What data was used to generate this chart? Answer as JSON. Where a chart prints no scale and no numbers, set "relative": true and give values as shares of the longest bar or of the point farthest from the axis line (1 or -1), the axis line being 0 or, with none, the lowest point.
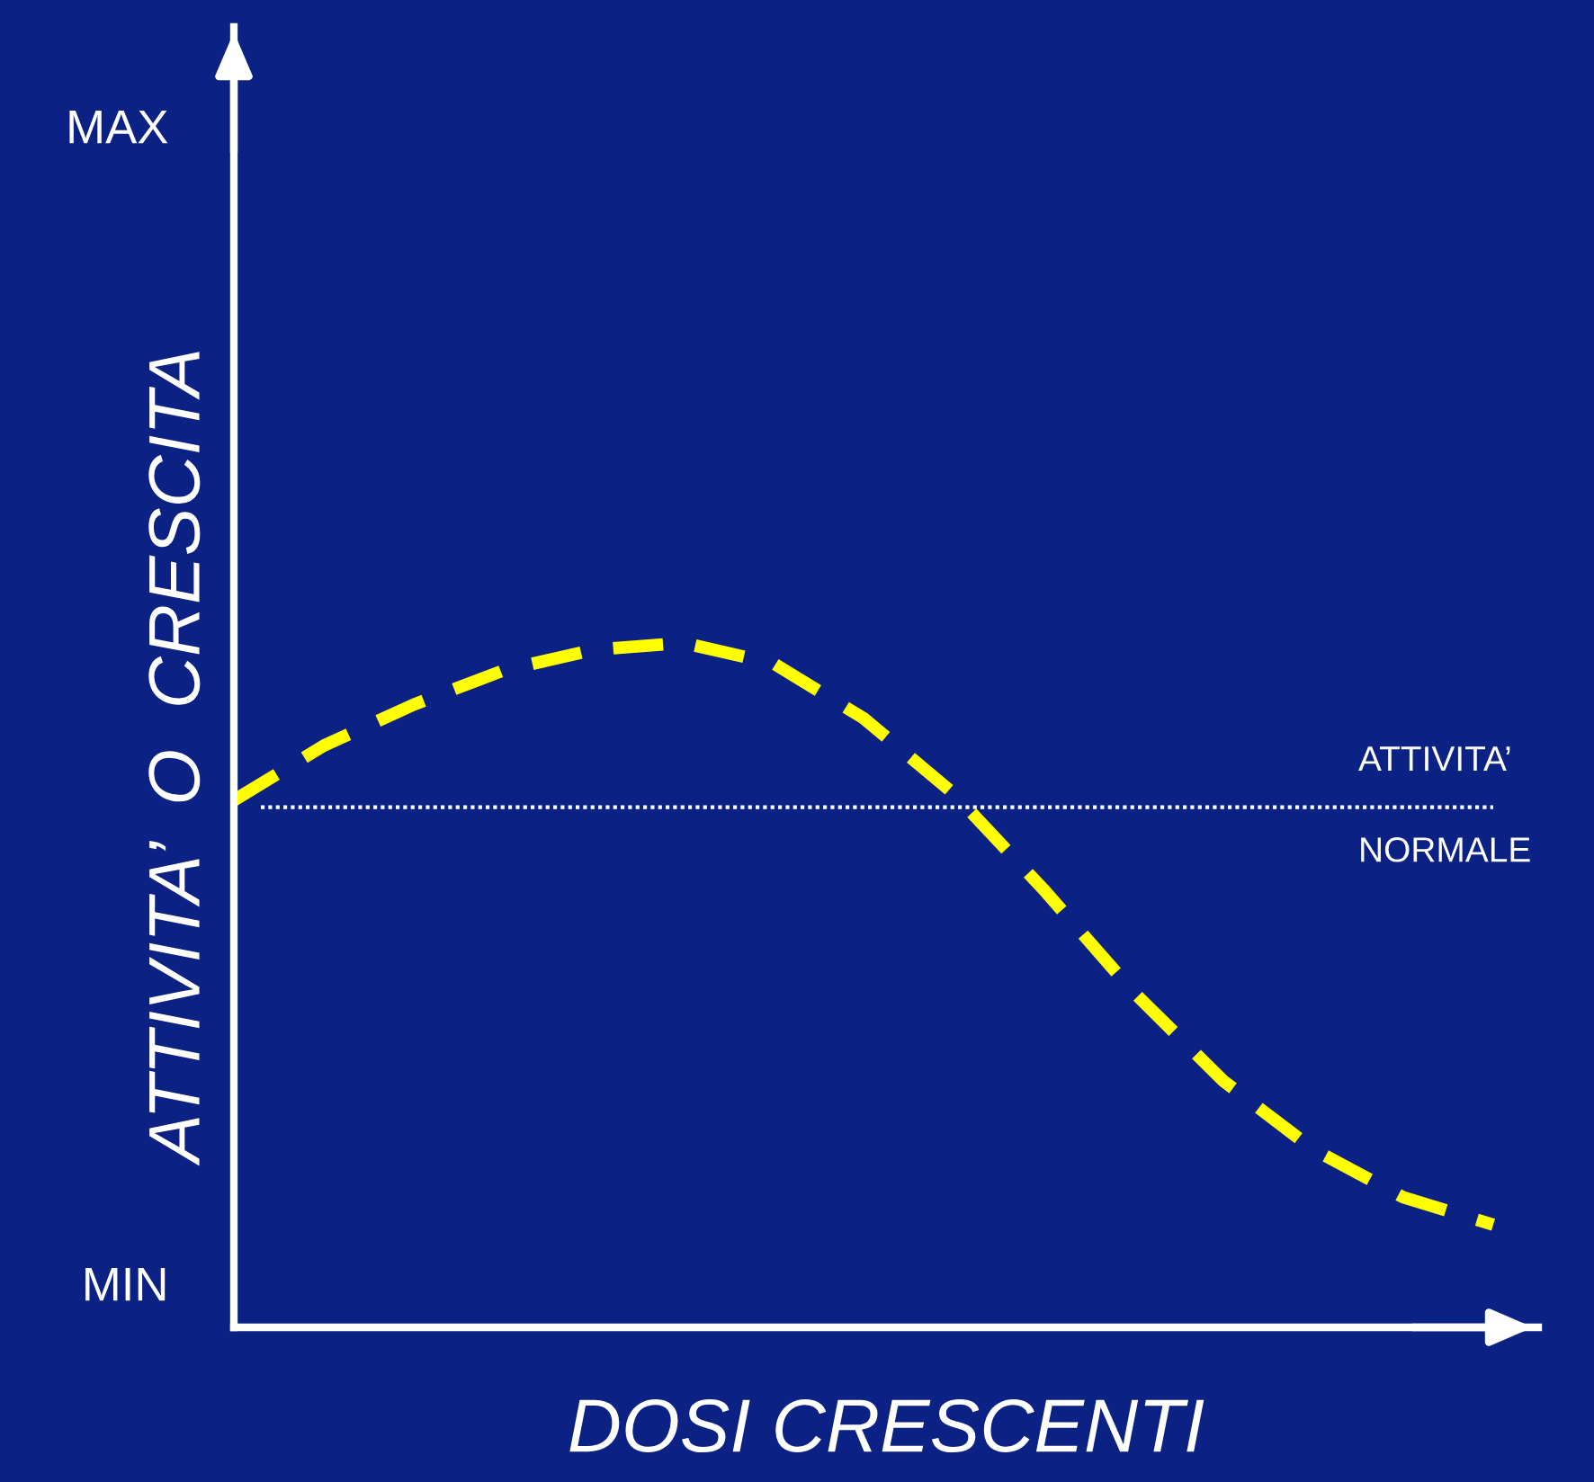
{
  "chart_data": {
    "type": "line",
    "xlabel": "DOSI CRESCENTI",
    "ylabel": "ATTIVITA’  O  CRESCITA",
    "annotations": [
      "MAX",
      "MIN"
    ],
    "relative": true,
    "categories": [
      null,
      null,
      null,
      null,
      null,
      null,
      null,
      null,
      null,
      null,
      null,
      null,
      null,
      null,
      null
    ],
    "series": [
      {
        "color": "#ffff00",
        "values": [
          0.77,
          0.85,
          0.91,
          0.96,
          0.99,
          1.0,
          0.97,
          0.89,
          0.78,
          0.64,
          0.49,
          0.36,
          0.26,
          0.19,
          0.15
        ]
      }
    ],
    "ref_lines": [
      {
        "axis": "y",
        "value": 0.76,
        "label": "ATTIVITA’\nNORMALE",
        "color": "#ffffff",
        "line_style": "dotted"
      }
    ],
    "line_style": "dashed",
    "marker": "none",
    "legend": false
  }
}
